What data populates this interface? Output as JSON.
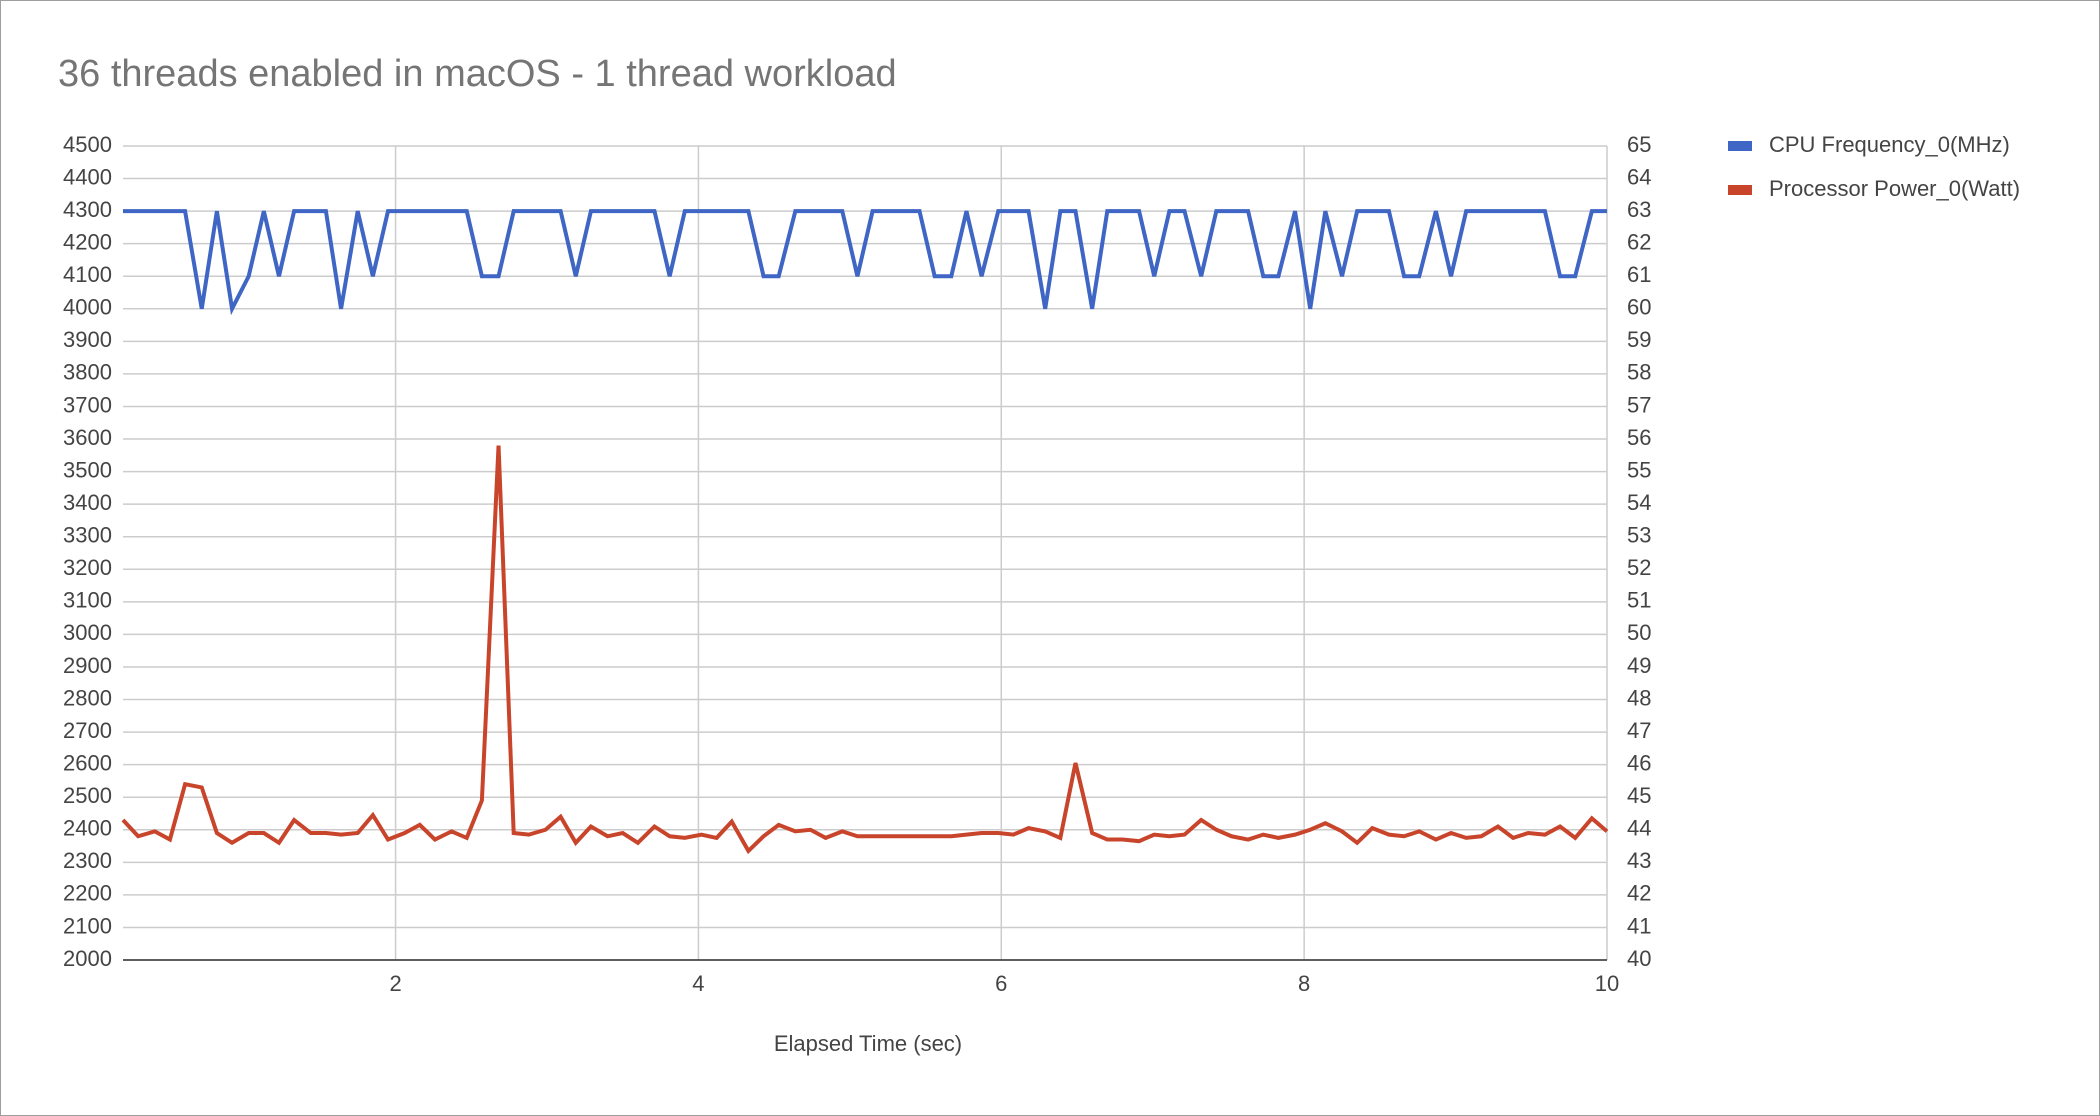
{
  "chart_data": {
    "type": "line",
    "title": "36 threads enabled in macOS - 1 thread workload",
    "x_label": "Elapsed Time (sec)",
    "x": [
      0.2,
      0.3,
      0.41,
      0.51,
      0.61,
      0.72,
      0.82,
      0.92,
      1.03,
      1.13,
      1.23,
      1.33,
      1.44,
      1.54,
      1.64,
      1.75,
      1.85,
      1.95,
      2.06,
      2.16,
      2.26,
      2.37,
      2.47,
      2.57,
      2.68,
      2.78,
      2.88,
      2.99,
      3.09,
      3.19,
      3.29,
      3.4,
      3.5,
      3.6,
      3.71,
      3.81,
      3.91,
      4.02,
      4.12,
      4.22,
      4.33,
      4.43,
      4.53,
      4.64,
      4.74,
      4.84,
      4.95,
      5.05,
      5.15,
      5.25,
      5.36,
      5.46,
      5.56,
      5.67,
      5.77,
      5.87,
      5.98,
      6.08,
      6.18,
      6.29,
      6.39,
      6.49,
      6.6,
      6.7,
      6.8,
      6.91,
      7.01,
      7.11,
      7.21,
      7.32,
      7.42,
      7.52,
      7.63,
      7.73,
      7.83,
      7.94,
      8.04,
      8.14,
      8.25,
      8.35,
      8.45,
      8.56,
      8.66,
      8.76,
      8.87,
      8.97,
      9.07,
      9.17,
      9.28,
      9.38,
      9.48,
      9.59,
      9.69,
      9.79,
      9.9,
      10.0
    ],
    "series": [
      {
        "name": "CPU Frequency_0(MHz)",
        "color": "#3f66c4",
        "values": [
          4300,
          4300,
          4300,
          4300,
          4300,
          4000,
          4300,
          4000,
          4100,
          4300,
          4100,
          4300,
          4300,
          4300,
          4000,
          4300,
          4100,
          4300,
          4300,
          4300,
          4300,
          4300,
          4300,
          4100,
          4100,
          4300,
          4300,
          4300,
          4300,
          4100,
          4300,
          4300,
          4300,
          4300,
          4300,
          4100,
          4300,
          4300,
          4300,
          4300,
          4300,
          4100,
          4100,
          4300,
          4300,
          4300,
          4300,
          4100,
          4300,
          4300,
          4300,
          4300,
          4100,
          4100,
          4300,
          4100,
          4300,
          4300,
          4300,
          4000,
          4300,
          4300,
          4000,
          4300,
          4300,
          4300,
          4100,
          4300,
          4300,
          4100,
          4300,
          4300,
          4300,
          4100,
          4100,
          4300,
          4000,
          4300,
          4100,
          4300,
          4300,
          4300,
          4100,
          4100,
          4300,
          4100,
          4300,
          4300,
          4300,
          4300,
          4300,
          4300,
          4100,
          4100,
          4300,
          4300
        ]
      },
      {
        "name": "Processor Power_0(Watt)",
        "color": "#c8452b",
        "axis": "y2",
        "values": [
          44.3,
          43.8,
          43.95,
          43.7,
          45.4,
          45.3,
          43.9,
          43.6,
          43.9,
          43.9,
          43.6,
          44.3,
          43.9,
          43.9,
          43.85,
          43.9,
          44.45,
          43.7,
          43.9,
          44.15,
          43.7,
          43.95,
          43.75,
          44.9,
          55.8,
          43.9,
          43.85,
          44.0,
          44.4,
          43.6,
          44.1,
          43.8,
          43.9,
          43.6,
          44.1,
          43.8,
          43.75,
          43.85,
          43.75,
          44.25,
          43.35,
          43.8,
          44.15,
          43.95,
          44.0,
          43.75,
          43.95,
          43.8,
          43.8,
          43.8,
          43.8,
          43.8,
          43.8,
          43.8,
          43.85,
          43.9,
          43.9,
          43.85,
          44.05,
          43.95,
          43.75,
          46.05,
          43.9,
          43.7,
          43.7,
          43.65,
          43.85,
          43.8,
          43.85,
          44.3,
          44.0,
          43.8,
          43.7,
          43.85,
          43.75,
          43.85,
          44.0,
          44.2,
          43.95,
          43.6,
          44.05,
          43.85,
          43.8,
          43.95,
          43.7,
          43.9,
          43.75,
          43.8,
          44.1,
          43.75,
          43.9,
          43.85,
          44.1,
          43.75,
          44.35,
          43.95
        ]
      }
    ],
    "xlim": [
      0.2,
      10
    ],
    "xticks": [
      2,
      4,
      6,
      8,
      10
    ],
    "ylim": [
      2000,
      4500
    ],
    "yticks": [
      2000,
      2100,
      2200,
      2300,
      2400,
      2500,
      2600,
      2700,
      2800,
      2900,
      3000,
      3100,
      3200,
      3300,
      3400,
      3500,
      3600,
      3700,
      3800,
      3900,
      4000,
      4100,
      4200,
      4300,
      4400,
      4500
    ],
    "y2lim": [
      40,
      65
    ],
    "y2ticks": [
      40,
      41,
      42,
      43,
      44,
      45,
      46,
      47,
      48,
      49,
      50,
      51,
      52,
      53,
      54,
      55,
      56,
      57,
      58,
      59,
      60,
      61,
      62,
      63,
      64,
      65
    ],
    "grid": true,
    "legend": "right"
  }
}
